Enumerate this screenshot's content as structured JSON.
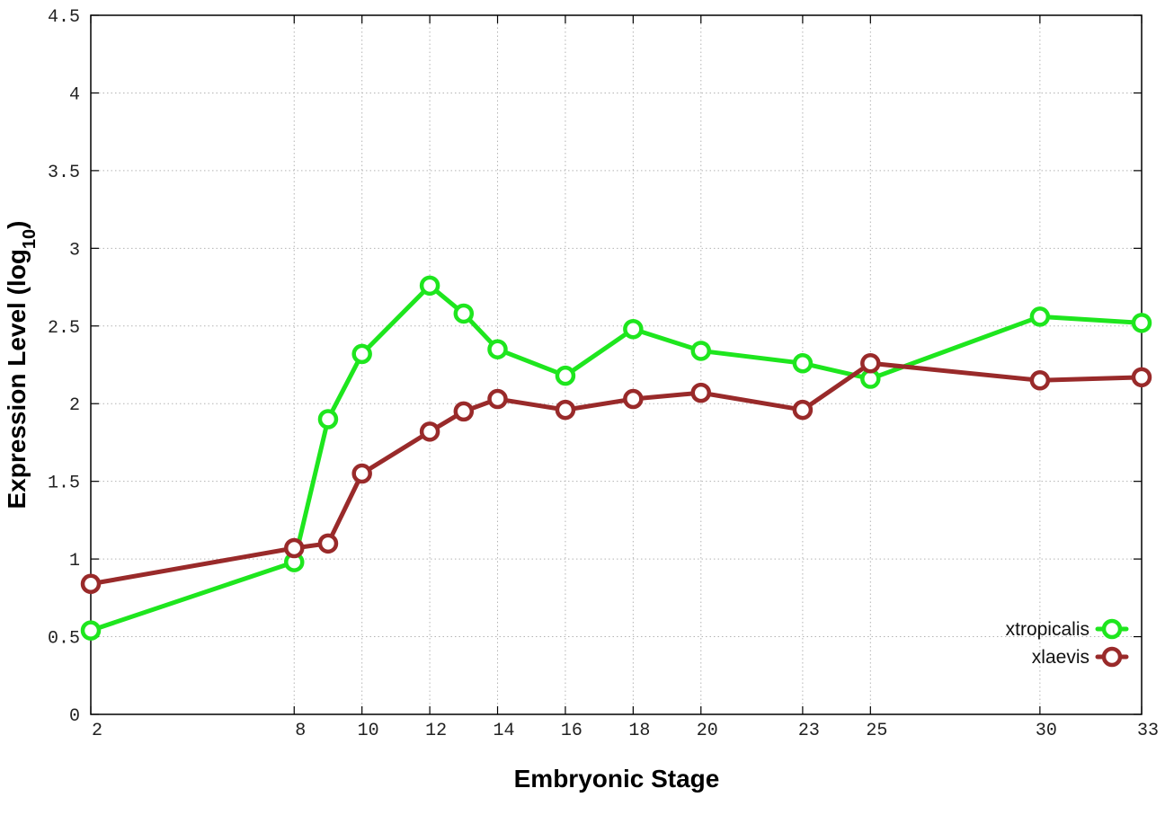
{
  "chart_data": {
    "type": "line",
    "title": "",
    "xlabel": "Embryonic Stage",
    "ylabel": {
      "main": "Expression Level (log",
      "sub": "10",
      "close": ")"
    },
    "x_ticks": [
      2,
      8,
      10,
      12,
      14,
      16,
      18,
      20,
      23,
      25,
      30,
      33
    ],
    "x_tick_labels": [
      "2",
      "8",
      "10",
      "12",
      "14",
      "16",
      "18",
      "20",
      "23",
      "25",
      "30",
      "33"
    ],
    "y_ticks": [
      0,
      0.5,
      1,
      1.5,
      2,
      2.5,
      3,
      3.5,
      4,
      4.5
    ],
    "y_tick_labels": [
      "0",
      "0.5",
      "1",
      "1.5",
      "2",
      "2.5",
      "3",
      "3.5",
      "4",
      "4.5"
    ],
    "xlim": [
      2,
      33
    ],
    "ylim": [
      0,
      4.5
    ],
    "grid": true,
    "legend_position": "bottom-right",
    "series": [
      {
        "name": "xtropicalis",
        "color": "#1ee61e",
        "x": [
          2,
          8,
          9,
          10,
          12,
          13,
          14,
          16,
          18,
          20,
          23,
          25,
          30,
          33
        ],
        "values": [
          0.54,
          0.98,
          1.9,
          2.32,
          2.76,
          2.58,
          2.35,
          2.18,
          2.48,
          2.34,
          2.26,
          2.16,
          2.56,
          2.52
        ]
      },
      {
        "name": "xlaevis",
        "color": "#992a2a",
        "x": [
          2,
          8,
          9,
          10,
          12,
          13,
          14,
          16,
          18,
          20,
          23,
          25,
          30,
          33
        ],
        "values": [
          0.84,
          1.07,
          1.1,
          1.55,
          1.82,
          1.95,
          2.03,
          1.96,
          2.03,
          2.07,
          1.96,
          2.26,
          2.15,
          2.17
        ]
      }
    ]
  }
}
